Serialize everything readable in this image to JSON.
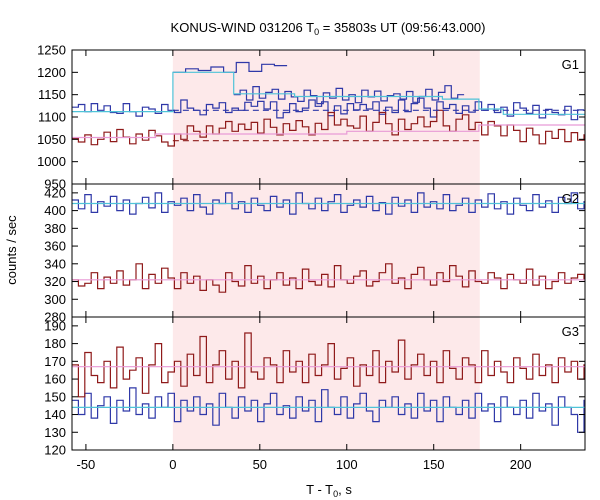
{
  "chart_data": {
    "type": "line",
    "title": {
      "main": "KONUS-WIND 031206 T",
      "sub": "0",
      "rest": " = 35803s UT (09:56:43.000)"
    },
    "xlabel": {
      "main": "T - T",
      "sub": "0",
      "rest": ", s"
    },
    "ylabel": "counts / sec",
    "xlim": [
      -58,
      237
    ],
    "xticks": [
      -50,
      0,
      50,
      100,
      150,
      200
    ],
    "highlight_interval": [
      0,
      176.5
    ],
    "colors": {
      "blue": "#2f38a8",
      "red": "#8f1a1a",
      "cyan": "#4fc3d8",
      "pink": "#e89ad6",
      "band": "#fde9ea"
    },
    "panels": [
      {
        "label": "G1",
        "ylim": [
          950,
          1250
        ],
        "yticks": [
          950,
          1000,
          1050,
          1100,
          1150,
          1200,
          1250
        ],
        "series": [
          {
            "color": "blue",
            "x0": -58,
            "dx": 3.68,
            "values": [
              1122,
              1128,
              1112,
              1130,
              1115,
              1125,
              1110,
              1108,
              1130,
              1112,
              1102,
              1122,
              1118,
              1108,
              1128,
              1115,
              1110,
              1138,
              1120,
              1115,
              1105,
              1128,
              1120,
              1132,
              1110,
              1120,
              1115,
              1133,
              1124,
              1135,
              1118,
              1134,
              1098,
              1110,
              1130,
              1112,
              1120,
              1138,
              1124,
              1134,
              1103,
              1125,
              1107,
              1130,
              1116,
              1128,
              1118,
              1134,
              1106,
              1122,
              1110,
              1138,
              1112,
              1130,
              1142,
              1120,
              1100,
              1134,
              1119,
              1128,
              1108,
              1125,
              1111,
              1134,
              1115,
              1128,
              1110,
              1122,
              1102,
              1132,
              1120,
              1108,
              1126,
              1098,
              1117,
              1110,
              1105,
              1124,
              1094,
              1116
            ]
          },
          {
            "color": "blue",
            "x0": 0,
            "dx": 7.3,
            "values": [
              1200,
              1208,
              1204,
              1212,
              1200,
              1222,
              1202,
              1218,
              1215
            ]
          },
          {
            "color": "blue",
            "x0": 35,
            "dx": 3.68,
            "values": [
              1150,
              1160,
              1138,
              1168,
              1142,
              1155,
              1162,
              1140,
              1157,
              1145,
              1135,
              1160,
              1148,
              1130,
              1154,
              1142,
              1164,
              1138,
              1150,
              1132,
              1160,
              1145,
              1158,
              1136,
              1148,
              1152,
              1140,
              1157,
              1133,
              1146,
              1162,
              1138,
              1155,
              1170,
              1142,
              1150
            ]
          },
          {
            "color": "red",
            "x0": -58,
            "dx": 3.68,
            "values": [
              1052,
              1044,
              1060,
              1038,
              1050,
              1066,
              1045,
              1072,
              1055,
              1040,
              1062,
              1048,
              1070,
              1058,
              1044,
              1035,
              1062,
              1050,
              1080,
              1068,
              1055,
              1080,
              1062,
              1075,
              1090,
              1068,
              1084,
              1072,
              1088,
              1064,
              1095,
              1077,
              1060,
              1085,
              1070,
              1092,
              1078,
              1060,
              1086,
              1072,
              1110,
              1082,
              1095,
              1080,
              1075,
              1102,
              1068,
              1088,
              1110,
              1085,
              1060,
              1095,
              1072,
              1085,
              1100,
              1078,
              1090,
              1115,
              1080,
              1068,
              1095,
              1105,
              1072,
              1088,
              1060,
              1090,
              1080,
              1058,
              1082,
              1070,
              1045,
              1075,
              1060,
              1040,
              1068,
              1052,
              1072,
              1045,
              1065,
              1048,
              1060
            ]
          }
        ],
        "fits": [
          {
            "color": "cyan",
            "points": [
              [
                -58,
                1112
              ],
              [
                0,
                1112
              ],
              [
                0,
                1200
              ],
              [
                35,
                1200
              ],
              [
                35,
                1152
              ],
              [
                70,
                1152
              ],
              [
                70,
                1146
              ],
              [
                155,
                1146
              ],
              [
                155,
                1140
              ],
              [
                176,
                1140
              ],
              [
                176,
                1118
              ],
              [
                190,
                1118
              ],
              [
                190,
                1106
              ],
              [
                237,
                1106
              ]
            ]
          },
          {
            "color": "pink",
            "points": [
              [
                -58,
                1054
              ],
              [
                -10,
                1054
              ],
              [
                -10,
                1062
              ],
              [
                100,
                1062
              ],
              [
                100,
                1068
              ],
              [
                176,
                1068
              ],
              [
                176,
                1082
              ],
              [
                237,
                1082
              ]
            ]
          }
        ],
        "dashed": [
          {
            "color": "blue",
            "x": [
              0,
              237
            ],
            "y": 1115
          },
          {
            "color": "red",
            "x": [
              0,
              176.5
            ],
            "y": 1047
          }
        ]
      },
      {
        "label": "G2",
        "ylim": [
          280,
          430
        ],
        "yticks": [
          280,
          300,
          320,
          340,
          360,
          380,
          400,
          420
        ],
        "series": [
          {
            "color": "blue",
            "x0": -58,
            "dx": 3.68,
            "values": [
              412,
              402,
              418,
              398,
              410,
              405,
              416,
              400,
              412,
              396,
              408,
              415,
              403,
              420,
              398,
              410,
              406,
              414,
              400,
              418,
              404,
              396,
              412,
              408,
              420,
              402,
              410,
              398,
              414,
              406,
              400,
              416,
              404,
              412,
              396,
              420,
              408,
              402,
              414,
              400,
              410,
              418,
              398,
              406,
              412,
              404,
              416,
              400,
              409,
              396,
              415,
              405,
              412,
              398,
              420,
              404,
              410,
              402,
              418,
              400,
              406,
              414,
              398,
              412,
              404,
              419,
              402,
              410,
              396,
              414,
              406,
              400,
              418,
              404,
              411,
              398,
              415,
              408,
              420,
              402,
              410
            ]
          },
          {
            "color": "red",
            "x0": -58,
            "dx": 3.68,
            "values": [
              322,
              315,
              318,
              330,
              312,
              325,
              318,
              332,
              316,
              322,
              340,
              312,
              328,
              318,
              335,
              324,
              312,
              330,
              318,
              326,
              310,
              322,
              316,
              308,
              330,
              320,
              315,
              338,
              318,
              326,
              312,
              322,
              330,
              316,
              324,
              312,
              334,
              320,
              316,
              328,
              314,
              338,
              322,
              318,
              326,
              332,
              315,
              320,
              330,
              340,
              318,
              324,
              312,
              328,
              336,
              322,
              316,
              330,
              320,
              338,
              326,
              314,
              332,
              320,
              318,
              330,
              324,
              312,
              328,
              322,
              318,
              334,
              316,
              326,
              312,
              320,
              330,
              318,
              324,
              328,
              322
            ]
          }
        ],
        "fits": [
          {
            "color": "cyan",
            "points": [
              [
                -58,
                408
              ],
              [
                237,
                408
              ]
            ]
          },
          {
            "color": "pink",
            "points": [
              [
                -58,
                322
              ],
              [
                237,
                322
              ]
            ]
          }
        ],
        "dashed": []
      },
      {
        "label": "G3",
        "ylim": [
          120,
          195
        ],
        "yticks": [
          120,
          130,
          140,
          150,
          160,
          170,
          180,
          190
        ],
        "series": [
          {
            "color": "blue",
            "x0": -58,
            "dx": 3.68,
            "values": [
              148,
              140,
              152,
              138,
              145,
              150,
              135,
              148,
              142,
              155,
              140,
              146,
              138,
              150,
              144,
              152,
              136,
              148,
              142,
              150,
              140,
              146,
              134,
              152,
              144,
              138,
              150,
              142,
              148,
              136,
              146,
              152,
              140,
              145,
              138,
              150,
              142,
              148,
              136,
              154,
              144,
              140,
              150,
              138,
              146,
              152,
              142,
              136,
              148,
              144,
              150,
              140,
              146,
              138,
              152,
              142,
              148,
              136,
              150,
              144,
              140,
              148,
              138,
              152,
              142,
              146,
              136,
              150,
              144,
              140,
              148,
              138,
              152,
              142,
              146,
              134,
              150,
              144,
              140,
              130,
              148
            ]
          },
          {
            "color": "red",
            "x0": -58,
            "dx": 3.68,
            "values": [
              168,
              150,
              175,
              162,
              158,
              170,
              155,
              178,
              160,
              165,
              172,
              152,
              168,
              180,
              158,
              164,
              170,
              156,
              174,
              162,
              184,
              158,
              168,
              176,
              160,
              170,
              155,
              186,
              164,
              160,
              172,
              168,
              158,
              176,
              164,
              170,
              158,
              174,
              162,
              168,
              180,
              160,
              166,
              172,
              156,
              168,
              162,
              176,
              158,
              170,
              164,
              182,
              160,
              168,
              174,
              162,
              170,
              158,
              176,
              166,
              160,
              172,
              168,
              158,
              176,
              162,
              170,
              164,
              158,
              172,
              166,
              160,
              174,
              162,
              168,
              158,
              172,
              164,
              170,
              160,
              168
            ]
          }
        ],
        "fits": [
          {
            "color": "cyan",
            "points": [
              [
                -58,
                144
              ],
              [
                237,
                144
              ]
            ]
          },
          {
            "color": "pink",
            "points": [
              [
                -58,
                167
              ],
              [
                237,
                167
              ]
            ]
          }
        ],
        "dashed": []
      }
    ]
  }
}
